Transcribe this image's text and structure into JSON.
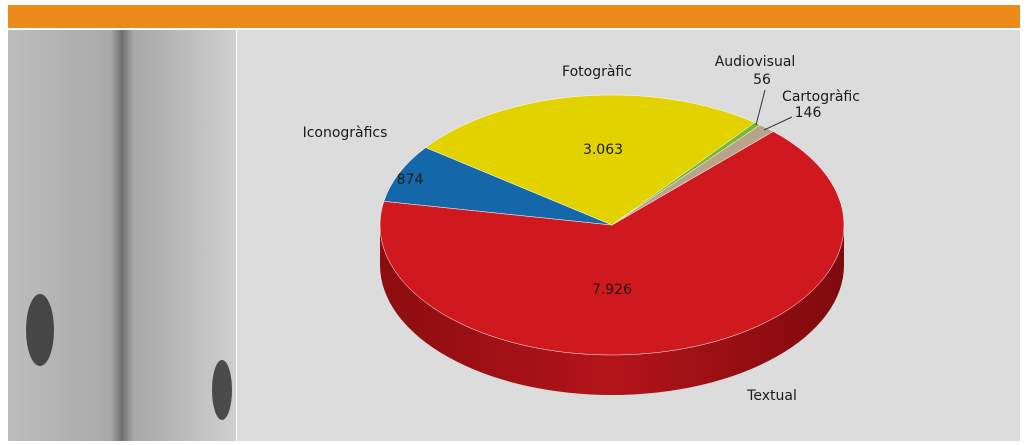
{
  "chart_data": {
    "type": "pie",
    "categories": [
      "Textual",
      "Iconogràfics",
      "Fotogràfic",
      "Audiovisual",
      "Cartogràfic"
    ],
    "values": [
      7926,
      874,
      3063,
      56,
      146
    ],
    "value_labels": [
      "7.926",
      "874",
      "3.063",
      "56",
      "146"
    ],
    "colors": [
      "#d0181f",
      "#1467a8",
      "#e2d300",
      "#7cb82f",
      "#b8a48a"
    ]
  }
}
